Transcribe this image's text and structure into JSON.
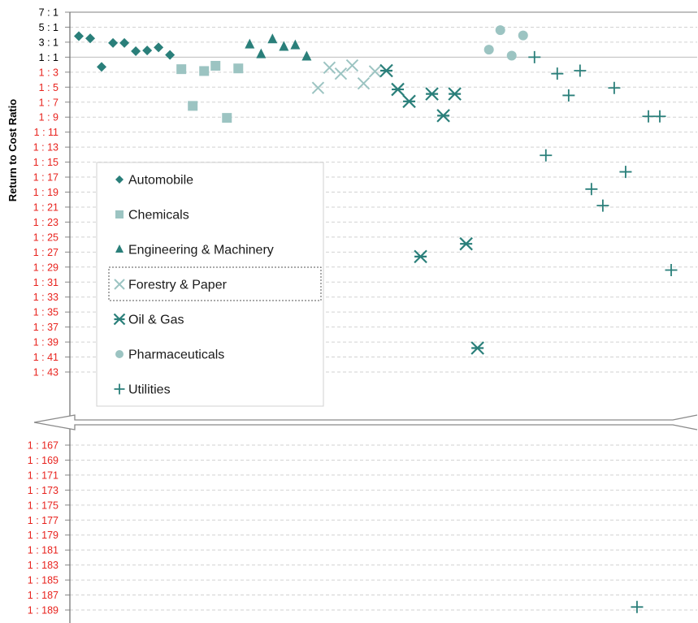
{
  "chart_data": {
    "type": "scatter",
    "title": "",
    "ylabel": "Return to Cost Ratio",
    "xlabel": "",
    "y_axis_break": {
      "after_index": 25,
      "resume_index": 26
    },
    "y_ticks": [
      {
        "label": "7 : 1",
        "value": 7,
        "color": "#000000"
      },
      {
        "label": "5 : 1",
        "value": 5,
        "color": "#000000"
      },
      {
        "label": "3 : 1",
        "value": 3,
        "color": "#000000"
      },
      {
        "label": "1 : 1",
        "value": 1,
        "color": "#000000"
      },
      {
        "label": "1 : 3",
        "value": -3,
        "color": "#e8231e"
      },
      {
        "label": "1 : 5",
        "value": -5,
        "color": "#e8231e"
      },
      {
        "label": "1 : 7",
        "value": -7,
        "color": "#e8231e"
      },
      {
        "label": "1 : 9",
        "value": -9,
        "color": "#e8231e"
      },
      {
        "label": "1 : 11",
        "value": -11,
        "color": "#e8231e"
      },
      {
        "label": "1 : 13",
        "value": -13,
        "color": "#e8231e"
      },
      {
        "label": "1 : 15",
        "value": -15,
        "color": "#e8231e"
      },
      {
        "label": "1 : 17",
        "value": -17,
        "color": "#e8231e"
      },
      {
        "label": "1 : 19",
        "value": -19,
        "color": "#e8231e"
      },
      {
        "label": "1 : 21",
        "value": -21,
        "color": "#e8231e"
      },
      {
        "label": "1 : 23",
        "value": -23,
        "color": "#e8231e"
      },
      {
        "label": "1 : 25",
        "value": -25,
        "color": "#e8231e"
      },
      {
        "label": "1 : 27",
        "value": -27,
        "color": "#e8231e"
      },
      {
        "label": "1 : 29",
        "value": -29,
        "color": "#e8231e"
      },
      {
        "label": "1 : 31",
        "value": -31,
        "color": "#e8231e"
      },
      {
        "label": "1 : 33",
        "value": -33,
        "color": "#e8231e"
      },
      {
        "label": "1 : 35",
        "value": -35,
        "color": "#e8231e"
      },
      {
        "label": "1 : 37",
        "value": -37,
        "color": "#e8231e"
      },
      {
        "label": "1 : 39",
        "value": -39,
        "color": "#e8231e"
      },
      {
        "label": "1 : 41",
        "value": -41,
        "color": "#e8231e"
      },
      {
        "label": "1 : 43",
        "value": -43,
        "color": "#e8231e"
      },
      {
        "label": "1 : 167",
        "value": -167,
        "color": "#e8231e"
      },
      {
        "label": "1 : 169",
        "value": -169,
        "color": "#e8231e"
      },
      {
        "label": "1 : 171",
        "value": -171,
        "color": "#e8231e"
      },
      {
        "label": "1 : 173",
        "value": -173,
        "color": "#e8231e"
      },
      {
        "label": "1 : 175",
        "value": -175,
        "color": "#e8231e"
      },
      {
        "label": "1 : 177",
        "value": -177,
        "color": "#e8231e"
      },
      {
        "label": "1 : 179",
        "value": -179,
        "color": "#e8231e"
      },
      {
        "label": "1 : 181",
        "value": -181,
        "color": "#e8231e"
      },
      {
        "label": "1 : 183",
        "value": -183,
        "color": "#e8231e"
      },
      {
        "label": "1 : 185",
        "value": -185,
        "color": "#e8231e"
      },
      {
        "label": "1 : 187",
        "value": -187,
        "color": "#e8231e"
      },
      {
        "label": "1 : 189",
        "value": -189,
        "color": "#e8231e"
      }
    ],
    "grid": "dashed-horizontal",
    "legend_position": "left-middle",
    "series": [
      {
        "name": "Automobile",
        "marker": "diamond",
        "color": "#2a7f7a",
        "points": [
          {
            "x": 1,
            "y": 3.8
          },
          {
            "x": 2,
            "y": 3.5
          },
          {
            "x": 3,
            "y": -1.6
          },
          {
            "x": 4,
            "y": 2.9
          },
          {
            "x": 5,
            "y": 2.9
          },
          {
            "x": 6,
            "y": 1.8
          },
          {
            "x": 7,
            "y": 1.9
          },
          {
            "x": 8,
            "y": 2.3
          },
          {
            "x": 9,
            "y": 1.3
          }
        ]
      },
      {
        "name": "Chemicals",
        "marker": "square",
        "color": "#9cc4c2",
        "points": [
          {
            "x": 10,
            "y": -2.2
          },
          {
            "x": 11,
            "y": -7.5
          },
          {
            "x": 12,
            "y": -2.7
          },
          {
            "x": 13,
            "y": -1.3
          },
          {
            "x": 14,
            "y": -9.1
          },
          {
            "x": 15,
            "y": -2.0
          }
        ]
      },
      {
        "name": "Engineering & Machinery",
        "marker": "triangle",
        "color": "#2a7f7a",
        "points": [
          {
            "x": 16,
            "y": 2.7
          },
          {
            "x": 17,
            "y": 1.4
          },
          {
            "x": 18,
            "y": 3.4
          },
          {
            "x": 19,
            "y": 2.4
          },
          {
            "x": 20,
            "y": 2.6
          },
          {
            "x": 21,
            "y": 1.1
          }
        ]
      },
      {
        "name": "Forestry & Paper",
        "marker": "x",
        "color": "#9cc4c2",
        "points": [
          {
            "x": 22,
            "y": -5.1
          },
          {
            "x": 23,
            "y": -1.8
          },
          {
            "x": 24,
            "y": -3.2
          },
          {
            "x": 25,
            "y": -1.2
          },
          {
            "x": 26,
            "y": -4.5
          },
          {
            "x": 27,
            "y": -2.8
          }
        ]
      },
      {
        "name": "Oil & Gas",
        "marker": "asterisk",
        "color": "#2a7f7a",
        "points": [
          {
            "x": 28,
            "y": -2.6
          },
          {
            "x": 29,
            "y": -5.3
          },
          {
            "x": 30,
            "y": -6.9
          },
          {
            "x": 31,
            "y": -27.6
          },
          {
            "x": 32,
            "y": -5.9
          },
          {
            "x": 33,
            "y": -8.8
          },
          {
            "x": 34,
            "y": -5.9
          },
          {
            "x": 35,
            "y": -25.9
          },
          {
            "x": 36,
            "y": -39.8
          }
        ]
      },
      {
        "name": "Pharmaceuticals",
        "marker": "circle",
        "color": "#9cc4c2",
        "points": [
          {
            "x": 37,
            "y": 2.0
          },
          {
            "x": 38,
            "y": 4.6
          },
          {
            "x": 39,
            "y": 1.2
          },
          {
            "x": 40,
            "y": 3.9
          }
        ]
      },
      {
        "name": "Utilities",
        "marker": "plus",
        "color": "#2a7f7a",
        "points": [
          {
            "x": 41,
            "y": 1.0
          },
          {
            "x": 42,
            "y": -14.1
          },
          {
            "x": 43,
            "y": -3.2
          },
          {
            "x": 44,
            "y": -6.1
          },
          {
            "x": 45,
            "y": -2.6
          },
          {
            "x": 46,
            "y": -18.6
          },
          {
            "x": 47,
            "y": -20.8
          },
          {
            "x": 48,
            "y": -5.1
          },
          {
            "x": 49,
            "y": -16.3
          },
          {
            "x": 50,
            "y": -188.6
          },
          {
            "x": 51,
            "y": -8.9
          },
          {
            "x": 52,
            "y": -8.9
          },
          {
            "x": 53,
            "y": -29.4
          }
        ]
      }
    ]
  }
}
